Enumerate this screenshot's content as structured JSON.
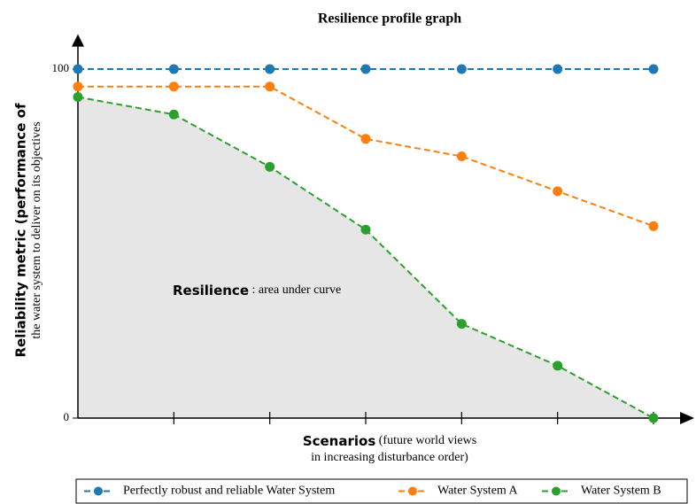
{
  "chart_data": {
    "type": "line",
    "title": "Resilience profile graph",
    "ylabel_bold": "Reliability metric  (performance of",
    "ylabel_sub": "the water system to deliver on its objectives",
    "xlabel_bold": "Scenarios",
    "xlabel_rest": " (future world views",
    "xlabel_line2": "in increasing disturbance order)",
    "annotation_bold": "Resilience",
    "annotation_rest": " : area under curve",
    "categories": [
      null,
      null,
      null,
      null,
      null,
      null,
      null
    ],
    "series": [
      {
        "name": "Perfectly robust and reliable Water System",
        "color": "#1f77b4",
        "values": [
          100,
          100,
          100,
          100,
          100,
          100,
          100
        ]
      },
      {
        "name": "Water System A",
        "color": "#ff7f0e",
        "values": [
          95,
          95,
          95,
          80,
          75,
          65,
          55
        ]
      },
      {
        "name": "Water System B",
        "color": "#2ca02c",
        "values": [
          92,
          87,
          72,
          54,
          27,
          15,
          0
        ],
        "fill": "#e6e6e6"
      }
    ],
    "ylim": [
      0,
      110
    ],
    "yticks": [
      0,
      100
    ],
    "legend": "bottom"
  }
}
